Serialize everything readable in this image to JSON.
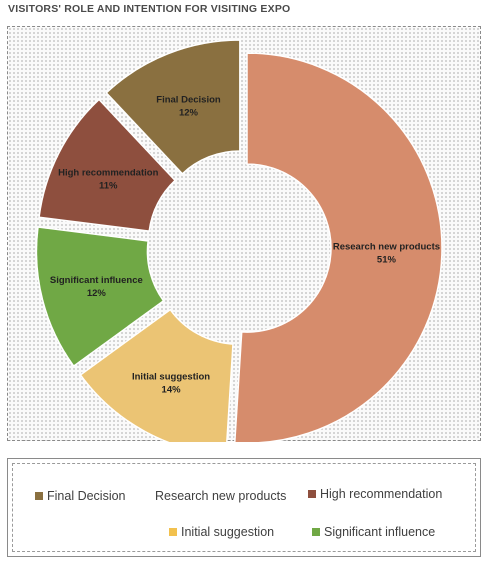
{
  "title": "VISITORS' ROLE AND INTENTION FOR VISITING EXPO",
  "chart_data": {
    "type": "pie",
    "variant": "doughnut-exploded",
    "categories": [
      "Research new products",
      "Initial suggestion",
      "Significant influence",
      "High recommendation",
      "Final Decision"
    ],
    "values": [
      51,
      14,
      12,
      11,
      12
    ],
    "value_labels": [
      "51%",
      "14%",
      "12%",
      "11%",
      "12%"
    ],
    "colors": [
      "#D68C6C",
      "#EBC474",
      "#70A845",
      "#8E4F3E",
      "#8A7040"
    ],
    "legend": {
      "placement": "bottom",
      "items": [
        {
          "label": "Final Decision",
          "color": "#8A7040"
        },
        {
          "label": "Research new products",
          "color": "#ffffff"
        },
        {
          "label": "High recommendation",
          "color": "#8E4F3E"
        },
        {
          "label": "Initial suggestion",
          "color": "#F2C14E"
        },
        {
          "label": "Significant influence",
          "color": "#70A845"
        }
      ]
    }
  }
}
